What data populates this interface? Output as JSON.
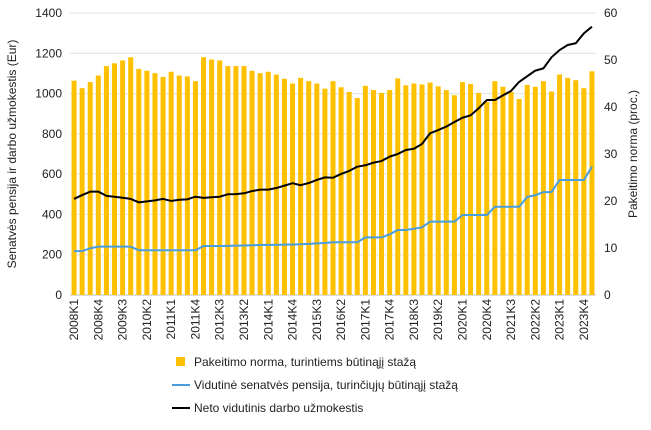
{
  "chart_data": {
    "type": "bar+line",
    "categories": [
      "2008K1",
      "2008K2",
      "2008K3",
      "2008K4",
      "2009K1",
      "2009K2",
      "2009K3",
      "2009K4",
      "2010K1",
      "2010K2",
      "2010K3",
      "2010K4",
      "2011K1",
      "2011K2",
      "2011K3",
      "2011K4",
      "2012K1",
      "2012K2",
      "2012K3",
      "2012K4",
      "2013K1",
      "2013K2",
      "2013K3",
      "2013K4",
      "2014K1",
      "2014K2",
      "2014K3",
      "2014K4",
      "2015K1",
      "2015K2",
      "2015K3",
      "2015K4",
      "2016K1",
      "2016K2",
      "2016K3",
      "2016K4",
      "2017K1",
      "2017K2",
      "2017K3",
      "2017K4",
      "2018K1",
      "2018K2",
      "2018K3",
      "2018K4",
      "2019K1",
      "2019K2",
      "2019K3",
      "2019K4",
      "2020K1",
      "2020K2",
      "2020K3",
      "2020K4",
      "2021K1",
      "2021K2",
      "2021K3",
      "2021K4",
      "2022K1",
      "2022K2",
      "2022K3",
      "2022K4",
      "2023K1",
      "2023K2",
      "2023K3",
      "2023K4",
      "2024K1"
    ],
    "tick_labels": [
      "2008K1",
      "2008K4",
      "2009K3",
      "2010K2",
      "2011K1",
      "2011K4",
      "2012K3",
      "2013K2",
      "2014K1",
      "2014K4",
      "2015K3",
      "2016K2",
      "2017K1",
      "2017K4",
      "2018K3",
      "2019K2",
      "2020K1",
      "2020K4",
      "2021K3",
      "2022K2",
      "2023K1",
      "2023K4"
    ],
    "ylabel": "Senatvės pensija ir darbo užmokestis (Eur)",
    "y2label": "Pakeitimo norma (proc.)",
    "ylim": [
      0,
      1400
    ],
    "yticks": [
      0,
      200,
      400,
      600,
      800,
      1000,
      1200,
      1400
    ],
    "y2lim": [
      0,
      60
    ],
    "y2ticks": [
      0,
      10,
      20,
      30,
      40,
      50,
      60
    ],
    "grid": true,
    "legend_position": "bottom",
    "series": [
      {
        "name": "Pakeitimo norma, turintiems būtinąjį stažą",
        "type": "bar",
        "axis": "right",
        "color": "#FFC000",
        "values": [
          45.6,
          44.0,
          45.3,
          46.7,
          48.7,
          49.3,
          49.9,
          50.6,
          48.1,
          47.7,
          47.2,
          46.4,
          47.5,
          46.7,
          46.5,
          45.5,
          50.6,
          50.1,
          49.9,
          48.7,
          48.7,
          48.7,
          47.7,
          47.2,
          47.5,
          46.9,
          46.0,
          45.0,
          46.2,
          45.5,
          45.0,
          43.9,
          45.5,
          44.2,
          43.2,
          41.9,
          44.5,
          43.6,
          43.0,
          43.6,
          46.1,
          44.6,
          45.0,
          44.8,
          45.2,
          44.4,
          43.6,
          42.5,
          45.3,
          44.9,
          43.0,
          41.1,
          45.5,
          44.3,
          43.2,
          41.7,
          44.7,
          44.3,
          45.5,
          43.3,
          46.9,
          46.2,
          45.7,
          44.0,
          47.6
        ]
      },
      {
        "name": "Vidutinė senatvės pensija, turinčiųjų būtinąjį stažą",
        "type": "line",
        "axis": "left",
        "color": "#4A9DE0",
        "values": [
          218,
          218,
          232,
          240,
          240,
          240,
          240,
          240,
          222,
          222,
          222,
          222,
          222,
          222,
          222,
          222,
          243,
          243,
          243,
          244,
          245,
          246,
          247,
          248,
          249,
          249,
          250,
          251,
          252,
          254,
          256,
          258,
          262,
          262,
          262,
          262,
          286,
          286,
          286,
          301,
          323,
          323,
          329,
          336,
          364,
          364,
          364,
          364,
          397,
          397,
          397,
          397,
          438,
          438,
          438,
          438,
          487,
          495,
          511,
          511,
          571,
          571,
          571,
          571,
          637
        ]
      },
      {
        "name": "Neto vidutinis darbo užmokestis",
        "type": "line",
        "axis": "left",
        "color": "#000000",
        "values": [
          477,
          496,
          513,
          513,
          492,
          488,
          483,
          477,
          460,
          465,
          470,
          477,
          467,
          473,
          475,
          488,
          482,
          485,
          488,
          500,
          501,
          505,
          516,
          523,
          523,
          531,
          543,
          555,
          545,
          556,
          571,
          584,
          582,
          601,
          616,
          637,
          644,
          657,
          665,
          687,
          700,
          720,
          726,
          750,
          803,
          819,
          836,
          859,
          880,
          892,
          927,
          968,
          968,
          991,
          1013,
          1058,
          1086,
          1114,
          1125,
          1180,
          1216,
          1241,
          1250,
          1299,
          1332
        ]
      }
    ]
  }
}
